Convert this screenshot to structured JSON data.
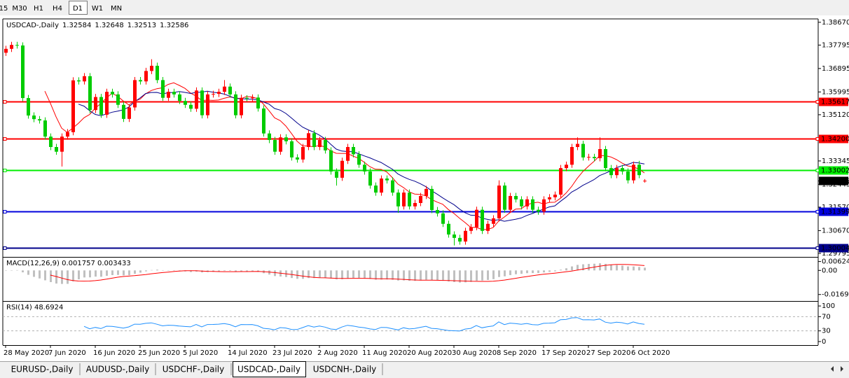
{
  "toolbar": {
    "timeframes": [
      "15",
      "M30",
      "H1",
      "H4",
      "D1",
      "W1",
      "MN"
    ],
    "active_index": 4
  },
  "chart_data": {
    "type": "candlestick",
    "title": "USDCAD-,Daily",
    "categories": [
      "28 May 2020",
      null,
      null,
      null,
      null,
      null,
      null,
      null,
      "7 Jun 2020",
      null,
      null,
      null,
      null,
      null,
      null,
      null,
      "16 Jun 2020",
      null,
      null,
      null,
      null,
      null,
      null,
      null,
      "25 Jun 2020",
      null,
      null,
      null,
      null,
      null,
      null,
      null,
      "5 Jul 2020",
      null,
      null,
      null,
      null,
      null,
      null,
      null,
      "14 Jul 2020",
      null,
      null,
      null,
      null,
      null,
      null,
      null,
      "23 Jul 2020",
      null,
      null,
      null,
      null,
      null,
      null,
      null,
      "2 Aug 2020",
      null,
      null,
      null,
      null,
      null,
      null,
      null,
      "11 Aug 2020",
      null,
      null,
      null,
      null,
      null,
      null,
      null,
      "20 Aug 2020",
      null,
      null,
      null,
      null,
      null,
      null,
      null,
      "30 Aug 2020",
      null,
      null,
      null,
      null,
      null,
      null,
      null,
      "8 Sep 2020",
      null,
      null,
      null,
      null,
      null,
      null,
      null,
      "17 Sep 2020",
      null,
      null,
      null,
      null,
      null,
      null,
      null,
      "27 Sep 2020",
      null,
      null,
      null,
      null,
      null,
      null,
      null,
      "6 Oct 2020",
      null,
      null
    ],
    "candles": [
      [
        1.375,
        1.3777,
        1.3738,
        1.3765
      ],
      [
        1.3765,
        1.3792,
        1.3753,
        1.378
      ],
      [
        1.378,
        1.3792,
        1.3766,
        1.3778
      ],
      [
        1.3778,
        1.379,
        1.3564,
        1.3576
      ],
      [
        1.3576,
        1.3588,
        1.3497,
        1.3509
      ],
      [
        1.3509,
        1.3521,
        1.3483,
        1.3495
      ],
      [
        1.3495,
        1.3507,
        1.3478,
        1.349
      ],
      [
        1.349,
        1.3502,
        1.3416,
        1.3428
      ],
      [
        1.3428,
        1.344,
        1.3376,
        1.3388
      ],
      [
        1.3388,
        1.34,
        1.3358,
        1.337
      ],
      [
        1.337,
        1.344,
        1.3313,
        1.3428
      ],
      [
        1.3428,
        1.3457,
        1.3416,
        1.3445
      ],
      [
        1.3445,
        1.3656,
        1.3433,
        1.3644
      ],
      [
        1.3644,
        1.3656,
        1.3628,
        1.364
      ],
      [
        1.364,
        1.3672,
        1.3628,
        1.366
      ],
      [
        1.366,
        1.3672,
        1.3518,
        1.353
      ],
      [
        1.353,
        1.3592,
        1.3518,
        1.358
      ],
      [
        1.358,
        1.3592,
        1.35,
        1.3512
      ],
      [
        1.3512,
        1.3612,
        1.35,
        1.36
      ],
      [
        1.36,
        1.3612,
        1.3578,
        1.359
      ],
      [
        1.359,
        1.3602,
        1.3538,
        1.355
      ],
      [
        1.355,
        1.3562,
        1.3484,
        1.3496
      ],
      [
        1.3496,
        1.3552,
        1.3484,
        1.354
      ],
      [
        1.354,
        1.3657,
        1.3528,
        1.3645
      ],
      [
        1.3645,
        1.3657,
        1.3628,
        1.364
      ],
      [
        1.364,
        1.3692,
        1.3628,
        1.368
      ],
      [
        1.368,
        1.3725,
        1.3668,
        1.37
      ],
      [
        1.37,
        1.3712,
        1.3633,
        1.3645
      ],
      [
        1.3645,
        1.3657,
        1.3565,
        1.3577
      ],
      [
        1.3577,
        1.3612,
        1.3565,
        1.36
      ],
      [
        1.36,
        1.3612,
        1.3578,
        1.359
      ],
      [
        1.359,
        1.3602,
        1.3553,
        1.3565
      ],
      [
        1.3565,
        1.3577,
        1.3538,
        1.355
      ],
      [
        1.355,
        1.3562,
        1.3523,
        1.3535
      ],
      [
        1.3535,
        1.3617,
        1.3523,
        1.3605
      ],
      [
        1.3605,
        1.3617,
        1.3498,
        1.351
      ],
      [
        1.351,
        1.3602,
        1.3498,
        1.359
      ],
      [
        1.359,
        1.3604,
        1.3578,
        1.3592
      ],
      [
        1.3592,
        1.3612,
        1.358,
        1.36
      ],
      [
        1.36,
        1.3645,
        1.3588,
        1.362
      ],
      [
        1.362,
        1.3632,
        1.3578,
        1.359
      ],
      [
        1.359,
        1.3602,
        1.3498,
        1.351
      ],
      [
        1.351,
        1.3589,
        1.3498,
        1.3577
      ],
      [
        1.3577,
        1.3587,
        1.3563,
        1.3575
      ],
      [
        1.3575,
        1.359,
        1.3563,
        1.3578
      ],
      [
        1.3578,
        1.359,
        1.3524,
        1.3536
      ],
      [
        1.3536,
        1.3548,
        1.3428,
        1.344
      ],
      [
        1.344,
        1.3452,
        1.3403,
        1.3415
      ],
      [
        1.3415,
        1.3427,
        1.3358,
        1.337
      ],
      [
        1.337,
        1.3437,
        1.3358,
        1.3425
      ],
      [
        1.3425,
        1.3437,
        1.3398,
        1.341
      ],
      [
        1.341,
        1.3422,
        1.3336,
        1.3348
      ],
      [
        1.3348,
        1.336,
        1.3328,
        1.334
      ],
      [
        1.334,
        1.34,
        1.3328,
        1.3388
      ],
      [
        1.3388,
        1.3453,
        1.3376,
        1.3441
      ],
      [
        1.3441,
        1.3453,
        1.3376,
        1.3388
      ],
      [
        1.3388,
        1.3427,
        1.3376,
        1.3415
      ],
      [
        1.3415,
        1.3427,
        1.3363,
        1.3375
      ],
      [
        1.3375,
        1.3387,
        1.3282,
        1.3294
      ],
      [
        1.3294,
        1.3306,
        1.324,
        1.327
      ],
      [
        1.327,
        1.3347,
        1.3258,
        1.3335
      ],
      [
        1.3335,
        1.34,
        1.3323,
        1.3388
      ],
      [
        1.3388,
        1.34,
        1.3348,
        1.336
      ],
      [
        1.336,
        1.3372,
        1.3308,
        1.332
      ],
      [
        1.332,
        1.3332,
        1.3282,
        1.3294
      ],
      [
        1.3294,
        1.3306,
        1.3228,
        1.324
      ],
      [
        1.324,
        1.3252,
        1.3201,
        1.3213
      ],
      [
        1.3213,
        1.3279,
        1.3201,
        1.3267
      ],
      [
        1.3267,
        1.3279,
        1.3248,
        1.326
      ],
      [
        1.326,
        1.3272,
        1.3201,
        1.3213
      ],
      [
        1.3213,
        1.3225,
        1.3135,
        1.316
      ],
      [
        1.316,
        1.3225,
        1.3148,
        1.3213
      ],
      [
        1.3213,
        1.3225,
        1.3148,
        1.316
      ],
      [
        1.316,
        1.3185,
        1.3148,
        1.3173
      ],
      [
        1.3173,
        1.3212,
        1.3161,
        1.32
      ],
      [
        1.32,
        1.3239,
        1.3188,
        1.3227
      ],
      [
        1.3227,
        1.3239,
        1.3134,
        1.3146
      ],
      [
        1.3146,
        1.3158,
        1.3121,
        1.3133
      ],
      [
        1.3133,
        1.3145,
        1.3081,
        1.3093
      ],
      [
        1.3093,
        1.3105,
        1.304,
        1.3052
      ],
      [
        1.3052,
        1.3064,
        1.301,
        1.3039
      ],
      [
        1.3039,
        1.3051,
        1.3013,
        1.3025
      ],
      [
        1.3025,
        1.3078,
        1.3013,
        1.3066
      ],
      [
        1.3066,
        1.3092,
        1.3054,
        1.308
      ],
      [
        1.308,
        1.3159,
        1.3068,
        1.3147
      ],
      [
        1.3147,
        1.3159,
        1.3054,
        1.3066
      ],
      [
        1.3066,
        1.3105,
        1.3054,
        1.3093
      ],
      [
        1.3093,
        1.3126,
        1.3081,
        1.3114
      ],
      [
        1.3114,
        1.326,
        1.3102,
        1.324
      ],
      [
        1.324,
        1.3252,
        1.3135,
        1.3147
      ],
      [
        1.3147,
        1.3212,
        1.3135,
        1.32
      ],
      [
        1.32,
        1.3212,
        1.3175,
        1.3187
      ],
      [
        1.3187,
        1.3199,
        1.3148,
        1.316
      ],
      [
        1.316,
        1.3199,
        1.3148,
        1.3187
      ],
      [
        1.3187,
        1.3199,
        1.3135,
        1.3147
      ],
      [
        1.3147,
        1.3159,
        1.3128,
        1.314
      ],
      [
        1.314,
        1.3199,
        1.3128,
        1.3187
      ],
      [
        1.3187,
        1.3207,
        1.3175,
        1.3195
      ],
      [
        1.3195,
        1.3217,
        1.3183,
        1.3205
      ],
      [
        1.3205,
        1.3319,
        1.3193,
        1.3307
      ],
      [
        1.3307,
        1.3332,
        1.3295,
        1.332
      ],
      [
        1.332,
        1.34,
        1.3308,
        1.3388
      ],
      [
        1.3388,
        1.3425,
        1.3376,
        1.34
      ],
      [
        1.34,
        1.3412,
        1.3336,
        1.3348
      ],
      [
        1.3348,
        1.3362,
        1.3336,
        1.335
      ],
      [
        1.335,
        1.3362,
        1.3333,
        1.3345
      ],
      [
        1.3345,
        1.3425,
        1.3333,
        1.338
      ],
      [
        1.338,
        1.3392,
        1.3295,
        1.3307
      ],
      [
        1.3307,
        1.3319,
        1.3268,
        1.328
      ],
      [
        1.328,
        1.3319,
        1.3268,
        1.3307
      ],
      [
        1.3307,
        1.3319,
        1.3282,
        1.3294
      ],
      [
        1.3294,
        1.3306,
        1.3248,
        1.326
      ],
      [
        1.326,
        1.3332,
        1.3248,
        1.332
      ],
      [
        1.332,
        1.3335,
        1.3268,
        1.328
      ],
      [
        1.32584,
        1.32648,
        1.32513,
        1.32586
      ]
    ],
    "up_color": "#ff0000",
    "down_color": "#00cc00",
    "ylim": [
      1.2966,
      1.388
    ],
    "yticks": [
      {
        "value": 1.3867,
        "label": "1.38670"
      },
      1.37795,
      1.36895,
      1.35995,
      {
        "value": 1.3512,
        "label": "1.35120"
      },
      1.33345,
      1.32445,
      {
        "value": 1.3157,
        "label": "1.31570"
      },
      {
        "value": 1.3067,
        "label": "1.30670"
      },
      1.29795
    ],
    "levels": [
      {
        "value": 1.35617,
        "color": "#ff0000"
      },
      {
        "value": 1.342,
        "label": "1.34200",
        "color": "#ff0000"
      },
      {
        "value": 1.33002,
        "color": "#00ee00"
      },
      {
        "value": 1.31399,
        "color": "#0000dd"
      },
      {
        "value": 1.30004,
        "color": "#00008b"
      }
    ],
    "moving_averages": [
      {
        "period": 8,
        "color": "#ff0000"
      },
      {
        "period": 14,
        "color": "#00008b"
      }
    ],
    "macd": {
      "title": "MACD(12,26,9) 0.001757 0.003433",
      "periods": [
        12,
        26,
        9
      ],
      "ylim": [
        -0.0215,
        0.009
      ],
      "yticks": [
        0.006245,
        {
          "value": 0,
          "label": "0.00"
        },
        -0.016933
      ],
      "histogram_color": "#c0c0c0",
      "signal_color": "#ff0000"
    },
    "rsi": {
      "title": "RSI(14) 48.6924",
      "period": 14,
      "ylim": [
        -10,
        112
      ],
      "yticks": [
        100,
        70,
        30,
        0
      ],
      "levels": [
        70,
        30
      ],
      "color": "#1e90ff"
    }
  },
  "tabs": {
    "items": [
      "EURUSD-,Daily",
      "AUDUSD-,Daily",
      "USDCHF-,Daily",
      "USDCAD-,Daily",
      "USDCNH-,Daily"
    ],
    "active_index": 3
  }
}
